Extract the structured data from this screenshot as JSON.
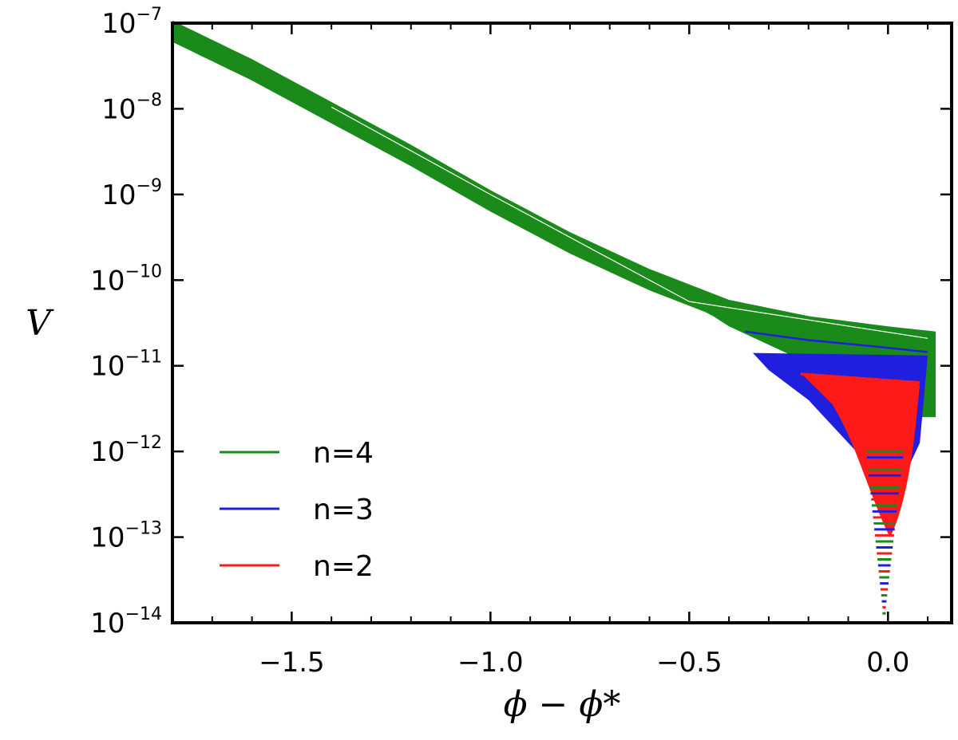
{
  "chart_data": {
    "type": "line",
    "xlabel": "ϕ − ϕ*",
    "ylabel": "V",
    "xlim": [
      -1.8,
      0.16
    ],
    "ylim_log10": [
      -14,
      -7
    ],
    "y_scale": "log",
    "x_ticks": [
      -1.5,
      -1.0,
      -0.5,
      0.0
    ],
    "x_tick_labels": [
      "−1.5",
      "−1.0",
      "−0.5",
      "0.0"
    ],
    "y_ticks": [
      -7,
      -8,
      -9,
      -10,
      -11,
      -12,
      -13,
      -14
    ],
    "y_tick_base": "10",
    "y_tick_exponents": [
      "−7",
      "−8",
      "−9",
      "−10",
      "−11",
      "−12",
      "−13",
      "−14"
    ],
    "legend_position": "lower-left",
    "series": [
      {
        "name": "n=4",
        "color": "#1a8a1a",
        "x": [
          -1.8,
          -1.6,
          -1.4,
          -1.2,
          -1.0,
          -0.8,
          -0.6,
          -0.4,
          -0.2,
          0.0,
          0.12
        ],
        "log10_y": [
          -7.0,
          -7.45,
          -7.95,
          -8.45,
          -8.98,
          -9.47,
          -9.9,
          -10.26,
          -10.45,
          -10.57,
          -10.63
        ]
      },
      {
        "name": "n=3",
        "color": "#1f1fdd",
        "x": [
          -0.36,
          -0.2,
          0.0,
          0.1
        ],
        "log10_y": [
          -10.6,
          -10.7,
          -10.79,
          -10.84
        ]
      },
      {
        "name": "n=2",
        "color": "#ff1a1a",
        "x": [
          -0.22,
          -0.1,
          0.0,
          0.08
        ],
        "log10_y": [
          -11.1,
          -11.16,
          -11.2,
          -11.25
        ]
      }
    ],
    "legend": [
      {
        "label": "n=4",
        "color": "#1a8a1a"
      },
      {
        "label": "n=3",
        "color": "#1f1fdd"
      },
      {
        "label": "n=2",
        "color": "#ff1a1a"
      }
    ]
  }
}
